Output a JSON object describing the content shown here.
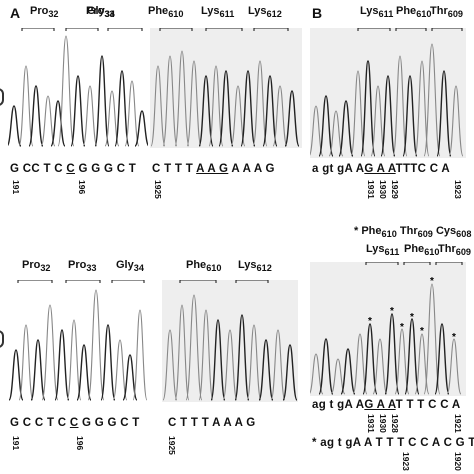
{
  "panels": {
    "a_label": "A",
    "b_label": "B"
  },
  "codon_labels": {
    "top_left": [
      {
        "aa": "Pro",
        "n": "32"
      },
      {
        "aa": "Pro",
        "n": "33"
      },
      {
        "aa": "Gly",
        "n": "34"
      }
    ],
    "top_mid": [
      {
        "aa": "Phe",
        "n": "610"
      },
      {
        "aa": "Lys",
        "n": "611"
      },
      {
        "aa": "Lys",
        "n": "612"
      }
    ],
    "top_right": [
      {
        "aa": "Lys",
        "n": "611"
      },
      {
        "aa": "Phe",
        "n": "610"
      },
      {
        "aa": "Thr",
        "n": "609"
      }
    ],
    "bottom_left": [
      {
        "aa": "Pro",
        "n": "32"
      },
      {
        "aa": "Pro",
        "n": "33"
      },
      {
        "aa": "Gly",
        "n": "34"
      }
    ],
    "bottom_mid": [
      {
        "aa": "Phe",
        "n": "610"
      },
      {
        "aa": "Lys",
        "n": "612"
      }
    ],
    "bottom_right_star_row": [
      {
        "aa": "Phe",
        "n": "610"
      },
      {
        "aa": "Thr",
        "n": "609"
      },
      {
        "aa": "Cys",
        "n": "608"
      }
    ],
    "bottom_right": [
      {
        "aa": "Lys",
        "n": "611"
      },
      {
        "aa": "Phe",
        "n": "610"
      },
      {
        "aa": "Thr",
        "n": "609"
      }
    ]
  },
  "sequences": {
    "top_left": {
      "pre": "G CC T C ",
      "underlined": "C",
      "post": " G G G C T"
    },
    "top_mid": {
      "pre": "C T T T  ",
      "underlined": "A A G",
      "post": " A A A G"
    },
    "top_right": {
      "pre": "a gt gA A",
      "underlined": "G A A",
      "post": "TTTC C   A"
    },
    "bottom_left": {
      "pre": "G C C T C ",
      "underlined": "C",
      "post": " G G G C T"
    },
    "bottom_mid": {
      "text": "C  T T T A A A G"
    },
    "bottom_right": {
      "pre": "ag t gA A",
      "underlined": "G A A",
      "post": "T T T C C A"
    },
    "bottom_right_mut": {
      "text": "ag t gA A T T T C C A C G T"
    }
  },
  "numbers": {
    "n191_top": "191",
    "n196_top": "196",
    "n1925_top": "1925",
    "n1931_top": "1931",
    "n1930_top": "1930",
    "n1929_top": "1929",
    "n1923_top": "1923",
    "n191_bot": "191",
    "n196_bot": "196",
    "n1925_bot": "1925",
    "n1931_bot": "1931",
    "n1930_bot": "1930",
    "n1929_bot": "1928",
    "n1923_bot": "1923",
    "n1921_bot": "1921",
    "n1920_bot": "1920"
  },
  "symbols": {
    "star": "*"
  },
  "colors": {
    "trace_dark": "#222222",
    "trace_gray": "#888888",
    "trace_bg": "#eeeeee"
  }
}
